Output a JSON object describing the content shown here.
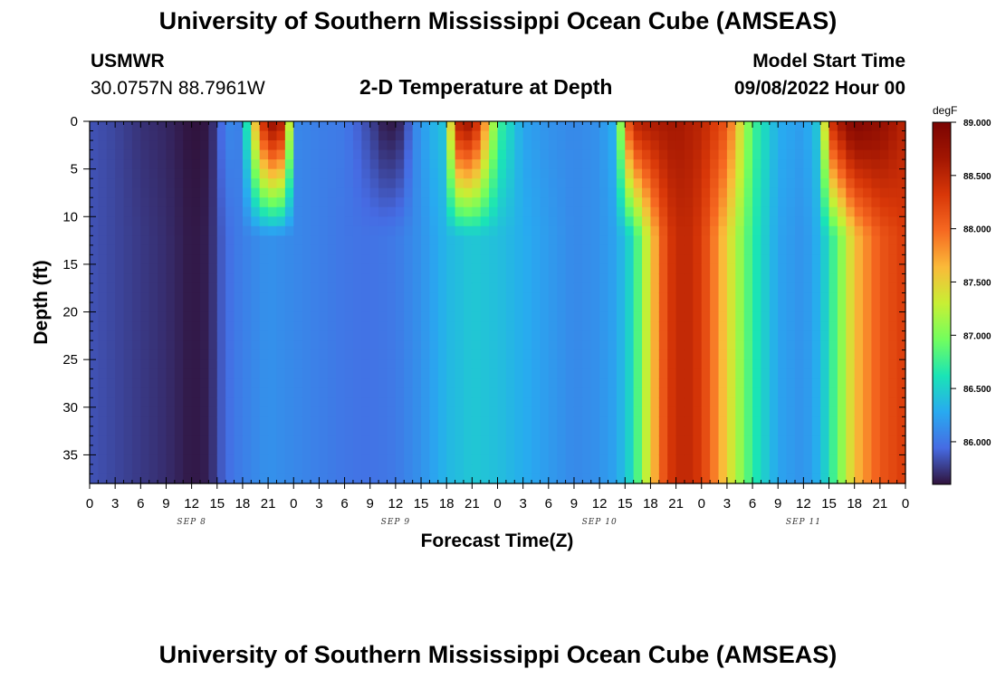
{
  "header": {
    "title": "University of Southern Mississippi Ocean Cube (AMSEAS)",
    "station": "USMWR",
    "coordinates": "30.0757N  88.7961W",
    "subtitle": "2-D Temperature at Depth",
    "model_start_label": "Model Start Time",
    "model_start_value": "09/08/2022 Hour 00"
  },
  "footer": {
    "title": "University of Southern Mississippi Ocean Cube (AMSEAS)"
  },
  "chart_data": {
    "type": "heatmap",
    "title": "2-D Temperature at Depth",
    "xlabel": "Forecast Time(Z)",
    "ylabel": "Depth (ft)",
    "x_tick_labels": [
      "0",
      "3",
      "6",
      "9",
      "12",
      "15",
      "18",
      "21",
      "0",
      "3",
      "6",
      "9",
      "12",
      "15",
      "18",
      "21",
      "0",
      "3",
      "6",
      "9",
      "12",
      "15",
      "18",
      "21",
      "0",
      "3",
      "6",
      "9",
      "12",
      "15",
      "18",
      "21",
      "0"
    ],
    "day_labels": [
      {
        "label": "SEP 8",
        "hour": 12
      },
      {
        "label": "SEP 9",
        "hour": 36
      },
      {
        "label": "SEP 10",
        "hour": 60
      },
      {
        "label": "SEP 11",
        "hour": 84
      }
    ],
    "xlim_hours": [
      0,
      96
    ],
    "y_ticks": [
      0,
      5,
      10,
      15,
      20,
      25,
      30,
      35
    ],
    "ylim": [
      0,
      38
    ],
    "y_inverted": true,
    "colorbar": {
      "unit": "degF",
      "range": [
        85.6,
        89.0
      ],
      "tick_labels": [
        "89.000",
        "88.500",
        "88.000",
        "87.500",
        "87.000",
        "86.500",
        "86.000"
      ],
      "tick_values": [
        89.0,
        88.5,
        88.0,
        87.5,
        87.0,
        86.5,
        86.0
      ],
      "colormap": "turbo"
    },
    "surface_temperature_by_hour": [
      [
        0,
        85.85
      ],
      [
        3,
        85.8
      ],
      [
        6,
        85.72
      ],
      [
        9,
        85.68
      ],
      [
        12,
        85.6
      ],
      [
        14,
        85.62
      ],
      [
        15,
        85.8
      ],
      [
        16,
        86.1
      ],
      [
        18,
        86.05
      ],
      [
        19,
        87.2
      ],
      [
        21,
        88.8
      ],
      [
        23,
        88.5
      ],
      [
        24,
        86.1
      ],
      [
        27,
        86.05
      ],
      [
        30,
        86.02
      ],
      [
        33,
        85.8
      ],
      [
        35,
        85.6
      ],
      [
        37,
        85.7
      ],
      [
        38,
        86.05
      ],
      [
        40,
        86.3
      ],
      [
        42,
        86.45
      ],
      [
        43,
        88.5
      ],
      [
        45,
        88.7
      ],
      [
        47,
        87.5
      ],
      [
        48,
        86.8
      ],
      [
        51,
        86.25
      ],
      [
        54,
        86.15
      ],
      [
        57,
        86.1
      ],
      [
        60,
        86.15
      ],
      [
        62,
        86.35
      ],
      [
        63,
        87.8
      ],
      [
        64,
        88.5
      ],
      [
        66,
        88.6
      ],
      [
        69,
        88.65
      ],
      [
        72,
        88.5
      ],
      [
        75,
        88.1
      ],
      [
        78,
        86.8
      ],
      [
        81,
        86.3
      ],
      [
        84,
        86.2
      ],
      [
        86,
        86.5
      ],
      [
        87,
        88.3
      ],
      [
        89,
        88.8
      ],
      [
        90,
        88.95
      ],
      [
        93,
        88.8
      ],
      [
        96,
        88.5
      ]
    ],
    "bottom_temperature_by_hour": [
      [
        0,
        85.85
      ],
      [
        3,
        85.8
      ],
      [
        6,
        85.75
      ],
      [
        9,
        85.7
      ],
      [
        12,
        85.62
      ],
      [
        14,
        85.65
      ],
      [
        15,
        85.8
      ],
      [
        16,
        85.95
      ],
      [
        18,
        86.05
      ],
      [
        21,
        86.15
      ],
      [
        24,
        86.1
      ],
      [
        27,
        86.05
      ],
      [
        30,
        86.0
      ],
      [
        33,
        85.98
      ],
      [
        36,
        86.02
      ],
      [
        39,
        86.15
      ],
      [
        42,
        86.35
      ],
      [
        45,
        86.45
      ],
      [
        48,
        86.4
      ],
      [
        51,
        86.3
      ],
      [
        54,
        86.2
      ],
      [
        57,
        86.1
      ],
      [
        60,
        86.15
      ],
      [
        62,
        86.25
      ],
      [
        64,
        86.6
      ],
      [
        66,
        87.5
      ],
      [
        68,
        88.3
      ],
      [
        70,
        88.5
      ],
      [
        72,
        88.3
      ],
      [
        75,
        87.5
      ],
      [
        78,
        86.7
      ],
      [
        81,
        86.25
      ],
      [
        84,
        86.15
      ],
      [
        86,
        86.35
      ],
      [
        88,
        86.9
      ],
      [
        90,
        87.6
      ],
      [
        93,
        88.1
      ],
      [
        96,
        88.3
      ]
    ]
  }
}
